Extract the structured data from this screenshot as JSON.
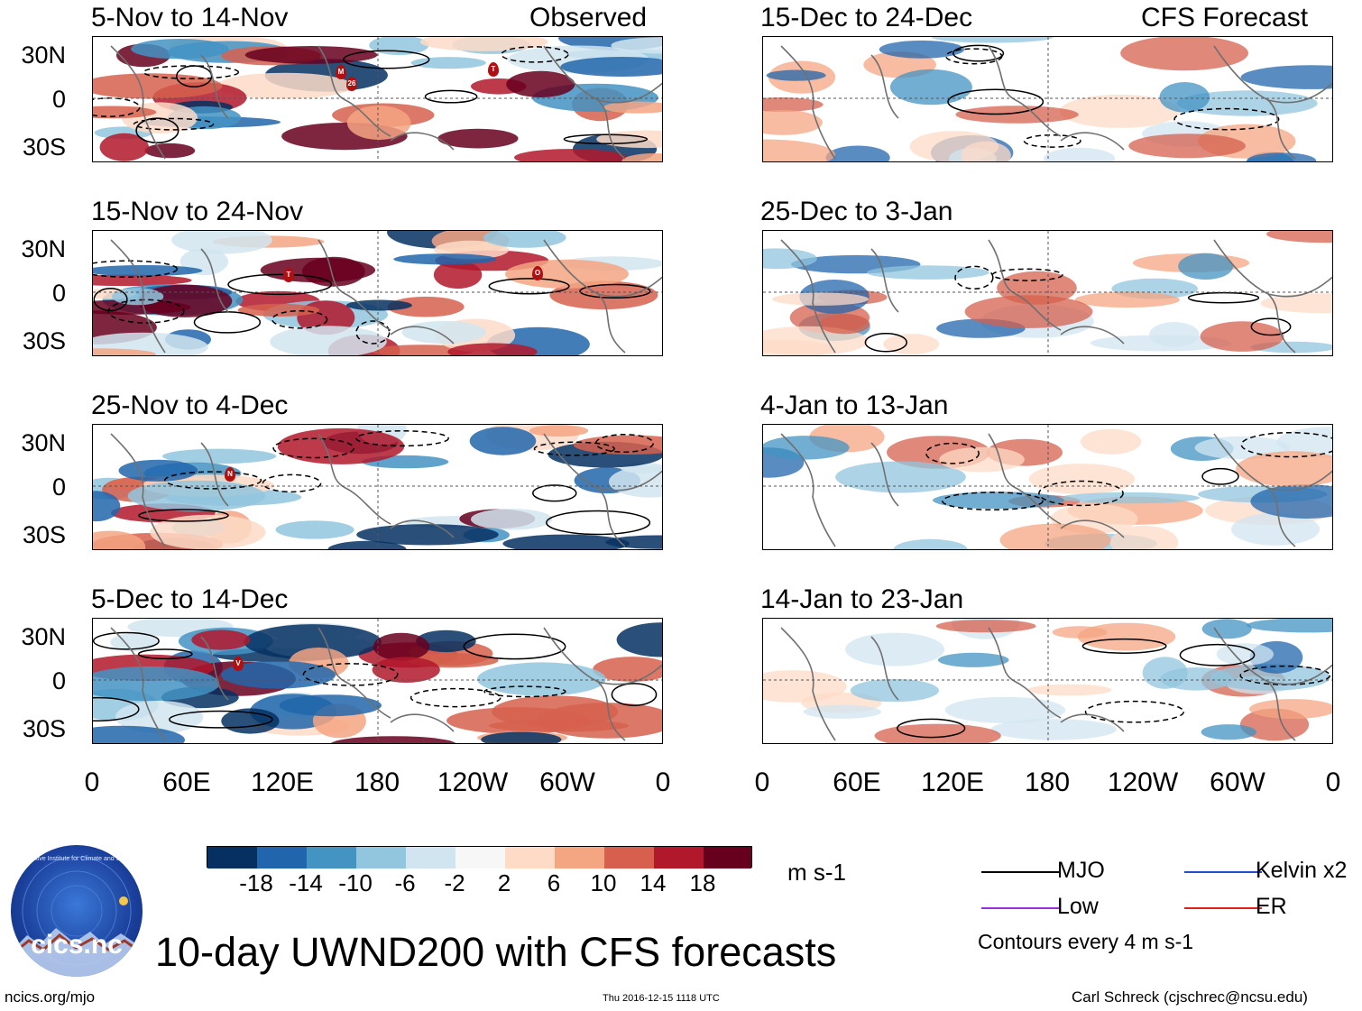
{
  "panels": {
    "p1": {
      "title": "5-Nov to 14-Nov",
      "tag": "Observed"
    },
    "p2": {
      "title": "15-Nov to 24-Nov"
    },
    "p3": {
      "title": "25-Nov to 4-Dec"
    },
    "p4": {
      "title": "5-Dec to 14-Dec"
    },
    "p5": {
      "title": "15-Dec to 24-Dec",
      "tag": "CFS Forecast"
    },
    "p6": {
      "title": "25-Dec to 3-Jan"
    },
    "p7": {
      "title": "4-Jan to 13-Jan"
    },
    "p8": {
      "title": "14-Jan to 23-Jan"
    }
  },
  "lat_labels": {
    "n30": "30N",
    "eq": "0",
    "s30": "30S"
  },
  "lon_labels": [
    "0",
    "60E",
    "120E",
    "180",
    "120W",
    "60W",
    "0"
  ],
  "colorbar": {
    "colors": [
      "#053061",
      "#2166ac",
      "#4393c3",
      "#92c5de",
      "#d1e5f0",
      "#f7f7f7",
      "#fddbc7",
      "#f4a582",
      "#d6604d",
      "#b2182b",
      "#67001f"
    ],
    "ticks": [
      "-18",
      "-14",
      "-10",
      "-6",
      "-2",
      "2",
      "6",
      "10",
      "14",
      "18"
    ],
    "units": "m s-1"
  },
  "legend": {
    "mjo": {
      "label": "MJO",
      "color": "#000000"
    },
    "kelvin": {
      "label": "Kelvin x2",
      "color": "#1f4fd0"
    },
    "low": {
      "label": "Low",
      "color": "#9b30e0"
    },
    "er": {
      "label": "ER",
      "color": "#e0201a"
    },
    "contours": "Contours every 4 m s-1"
  },
  "storm_markers": {
    "p1": [
      "M",
      "26",
      "T"
    ],
    "p2": [
      "T",
      "O"
    ],
    "p3": [
      "N"
    ],
    "p4": [
      "V"
    ]
  },
  "footer": {
    "logo_text": "cics.nc",
    "logo_ring": "Cooperative Institute for Climate and Satellites",
    "title": "10-day UWND200 with CFS forecasts",
    "url": "ncics.org/mjo",
    "timestamp": "Thu 2016-12-15 1118 UTC",
    "author": "Carl Schreck (cjschrec@ncsu.edu)"
  }
}
